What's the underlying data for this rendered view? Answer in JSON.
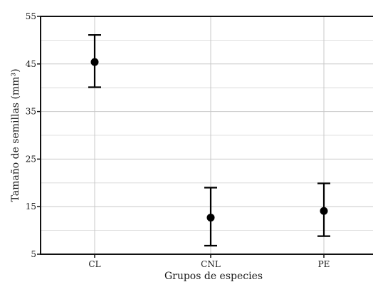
{
  "chart_data": {
    "type": "scatter",
    "categories": [
      "CL",
      "CNL",
      "PE"
    ],
    "series": [
      {
        "values": [
          45.4,
          12.7,
          14.1
        ],
        "error_low": [
          40.1,
          6.8,
          8.8
        ],
        "error_high": [
          51.1,
          19.0,
          19.9
        ]
      }
    ],
    "xlabel": "Grupos de especies",
    "ylabel": "Tamaño de semillas (mm³)",
    "ylim": [
      5,
      55
    ],
    "yticks": [
      "5",
      "15",
      "25",
      "35",
      "45",
      "55"
    ],
    "grid": true,
    "marker_color": "#000000"
  }
}
